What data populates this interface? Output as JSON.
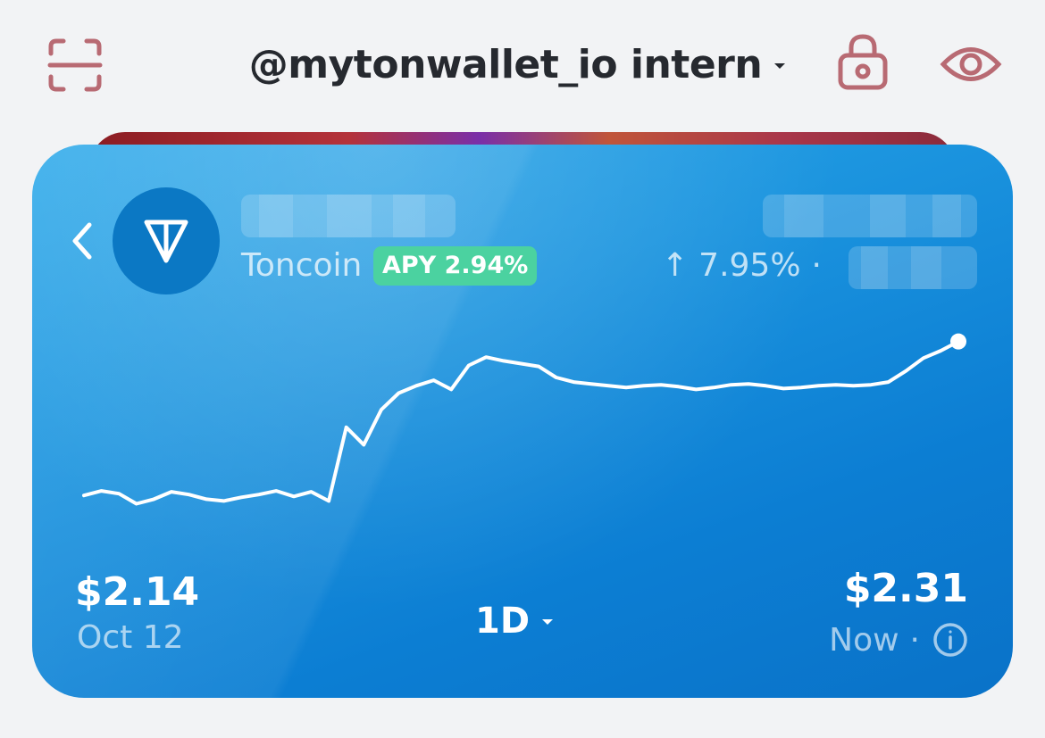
{
  "header": {
    "wallet_name": "@mytonwallet_io intern",
    "icon_color": "#b86a73",
    "icons": {
      "scan": "scan-frame-icon",
      "lock": "lock-icon",
      "visibility": "eye-icon",
      "caret": "chevron-down-icon"
    }
  },
  "token_card": {
    "token_name": "Toncoin",
    "apy_label": "APY 2.94%",
    "price_change": "↑ 7.95%",
    "change_separator": "·",
    "balance_hidden": true,
    "value_hidden": true,
    "change_amount_hidden": true,
    "start_price": "$2.14",
    "start_date": "Oct 12",
    "end_price": "$2.31",
    "end_date": "Now",
    "end_separator": "·",
    "period": "1D",
    "colors": {
      "card_gradient_start": "#2aa8ea",
      "card_gradient_end": "#0a72c8",
      "apy_badge": "#4bd2a0"
    },
    "icons": {
      "back": "chevron-left-icon",
      "token_logo": "ton-logo-icon",
      "info": "info-circle-icon",
      "period_caret": "chevron-down-icon"
    }
  },
  "chart_data": {
    "type": "line",
    "title": "",
    "xlabel": "",
    "ylabel": "",
    "x_range": [
      "Oct 12",
      "Now"
    ],
    "ylim": [
      2.09,
      2.33
    ],
    "grid": false,
    "series": [
      {
        "values": [
          2.143,
          2.148,
          2.145,
          2.134,
          2.139,
          2.147,
          2.144,
          2.139,
          2.137,
          2.141,
          2.144,
          2.148,
          2.142,
          2.147,
          2.137,
          2.217,
          2.198,
          2.236,
          2.254,
          2.262,
          2.268,
          2.258,
          2.284,
          2.293,
          2.289,
          2.286,
          2.283,
          2.271,
          2.266,
          2.264,
          2.262,
          2.26,
          2.262,
          2.263,
          2.261,
          2.258,
          2.26,
          2.263,
          2.264,
          2.262,
          2.259,
          2.26,
          2.262,
          2.263,
          2.262,
          2.263,
          2.266,
          2.278,
          2.292,
          2.3,
          2.31
        ]
      }
    ]
  }
}
